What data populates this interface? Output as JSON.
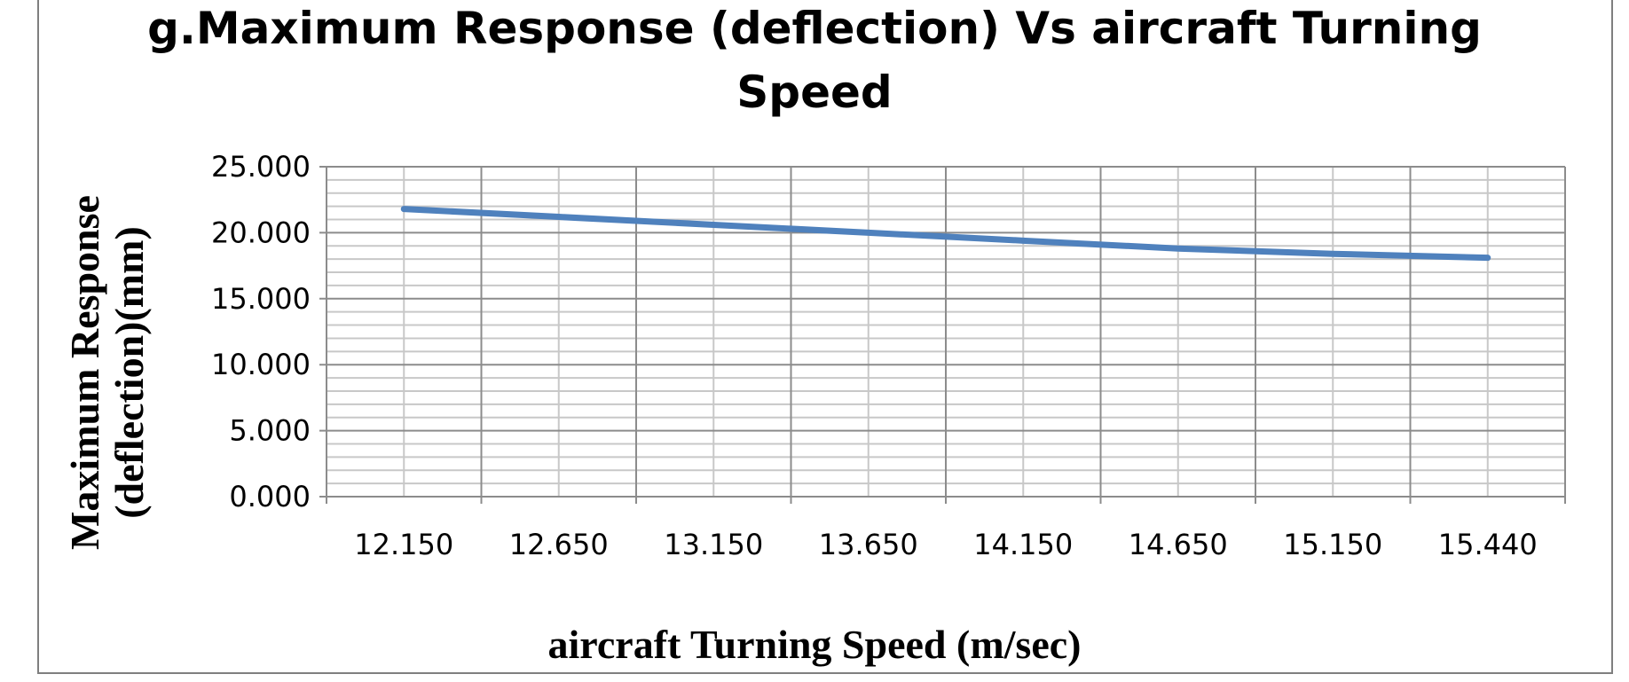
{
  "chart_data": {
    "type": "line",
    "title_lines": [
      "g.Maximum Response (deflection) Vs aircraft Turning",
      "Speed"
    ],
    "xlabel": "aircraft Turning Speed (m/sec)",
    "ylabel": "Maximum Response (deflection)(mm)",
    "categories": [
      "12.150",
      "12.650",
      "13.150",
      "13.650",
      "14.150",
      "14.650",
      "15.150",
      "15.440"
    ],
    "y_tick_labels": [
      "0.000",
      "5.000",
      "10.000",
      "15.000",
      "20.000",
      "25.000"
    ],
    "ylim": [
      0,
      25
    ],
    "y_major_step": 5,
    "y_minor_step": 1,
    "grid": true,
    "legend": "none",
    "series": [
      {
        "values": [
          21.8,
          21.2,
          20.6,
          20.0,
          19.4,
          18.8,
          18.4,
          18.1
        ],
        "color": "#4f81bd"
      }
    ]
  }
}
